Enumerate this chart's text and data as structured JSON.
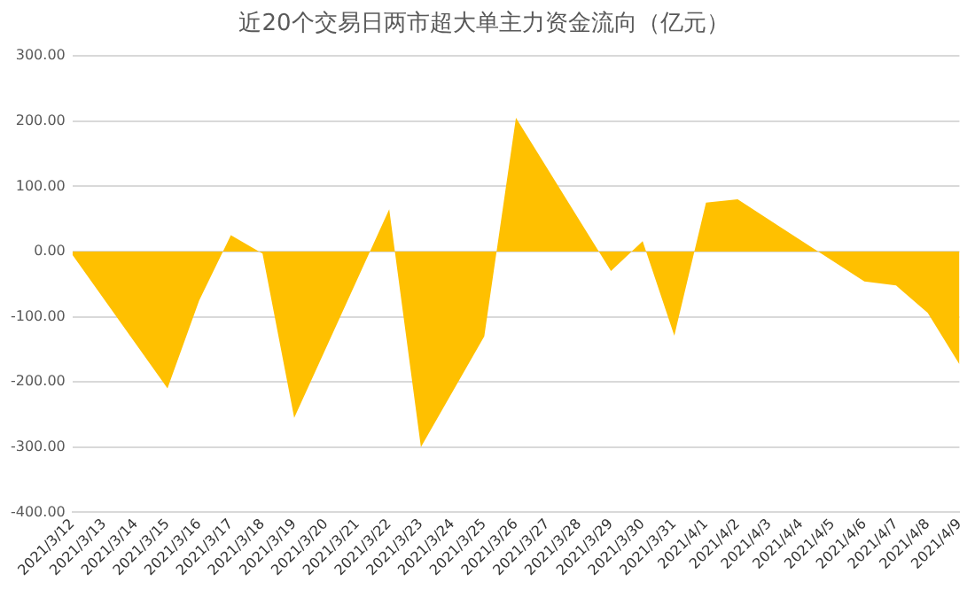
{
  "chart_data": {
    "type": "area",
    "title": "近20个交易日两市超大单主力资金流向（亿元）",
    "categories": [
      "2021/3/12",
      "2021/3/13",
      "2021/3/14",
      "2021/3/15",
      "2021/3/16",
      "2021/3/17",
      "2021/3/18",
      "2021/3/19",
      "2021/3/20",
      "2021/3/21",
      "2021/3/22",
      "2021/3/23",
      "2021/3/24",
      "2021/3/25",
      "2021/3/26",
      "2021/3/27",
      "2021/3/28",
      "2021/3/29",
      "2021/3/30",
      "2021/3/31",
      "2021/4/1",
      "2021/4/2",
      "2021/4/3",
      "2021/4/4",
      "2021/4/5",
      "2021/4/6",
      "2021/4/7",
      "2021/4/8",
      "2021/4/9"
    ],
    "series": [
      {
        "color": "#ffc000",
        "values": [
          -5,
          null,
          null,
          -210,
          -75,
          25,
          -3,
          -255,
          null,
          null,
          65,
          -300,
          -215,
          -130,
          205,
          null,
          null,
          -30,
          16,
          -129,
          75,
          80,
          null,
          null,
          null,
          -46,
          -52,
          -94,
          -173
        ]
      }
    ],
    "ylim": [
      -400,
      300
    ],
    "yticks": [
      {
        "value": -400,
        "label": "-400.00"
      },
      {
        "value": -300,
        "label": "-300.00"
      },
      {
        "value": -200,
        "label": "-200.00"
      },
      {
        "value": -100,
        "label": "-100.00"
      },
      {
        "value": 0,
        "label": "0.00"
      },
      {
        "value": 100,
        "label": "100.00"
      },
      {
        "value": 200,
        "label": "200.00"
      },
      {
        "value": 300,
        "label": "300.00"
      }
    ],
    "grid": "y",
    "legend": false
  }
}
